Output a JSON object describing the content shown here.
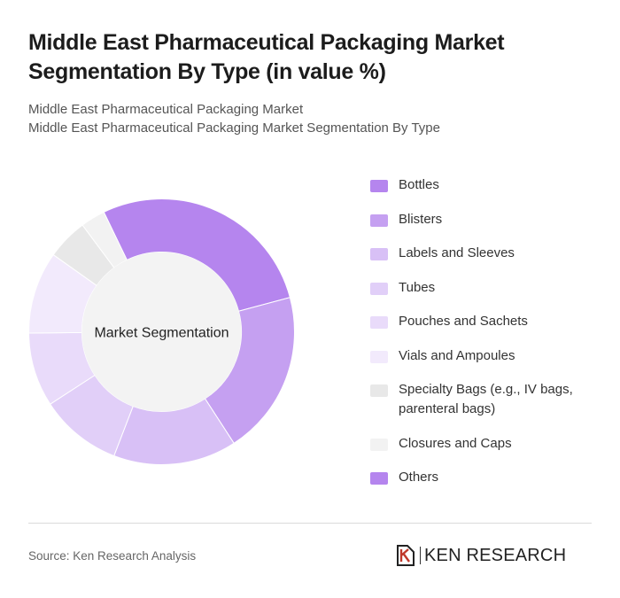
{
  "title": "Middle East Pharmaceutical Packaging Market Segmentation By Type (in value %)",
  "subtitle_lines": [
    "Middle East Pharmaceutical Packaging Market",
    "Middle East Pharmaceutical Packaging Market Segmentation By Type"
  ],
  "source": "Source: Ken Research Analysis",
  "logo": {
    "text": "KEN RESEARCH",
    "icon": "ken-research-logo-icon"
  },
  "chart_data": {
    "type": "pie",
    "center_label": "Market Segmentation",
    "legend_position": "right",
    "categories": [
      "Bottles",
      "Blisters",
      "Labels and Sleeves",
      "Tubes",
      "Pouches and Sachets",
      "Vials and Ampoules",
      "Specialty Bags (e.g., IV bags, parenteral bags)",
      "Closures and Caps",
      "Others"
    ],
    "values": [
      28,
      20,
      15,
      10,
      9,
      10,
      5,
      3,
      0
    ],
    "colors": [
      "#b585ee",
      "#c5a0f1",
      "#d8c0f6",
      "#e1cff8",
      "#e9dbfa",
      "#f2eafc",
      "#e8e8e8",
      "#f2f2f2",
      "#b585ee"
    ]
  }
}
